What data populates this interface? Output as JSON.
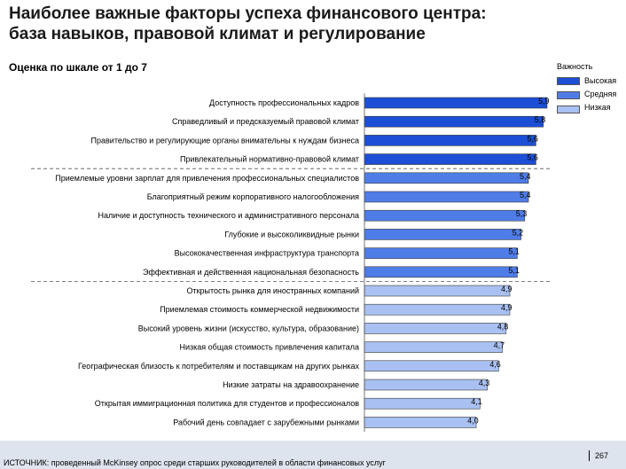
{
  "title_line1": "Наиболее важные факторы успеха финансового центра:",
  "title_line2": "база навыков, правовой климат и регулирование",
  "subtitle": "Оценка по шкале от 1 до 7",
  "legend": {
    "title": "Важность",
    "items": [
      {
        "label": "Высокая",
        "color": "#1c4fd6"
      },
      {
        "label": "Средняя",
        "color": "#4f7de8"
      },
      {
        "label": "Низкая",
        "color": "#a9c1f2"
      }
    ]
  },
  "source": "ИСТОЧНИК: проведенный McKinsey опрос среди старших руководителей в области финансовых услуг",
  "page_number": "267",
  "chart_data": {
    "type": "bar",
    "orientation": "horizontal",
    "categories": [
      "Доступность профессиональных кадров",
      "Справедливый и предсказуемый правовой климат",
      "Правительство и регулирующие органы внимательны к нуждам бизнеса",
      "Привлекательный нормативно-правовой климат",
      "Приемлемые уровни зарплат для привлечения профессиональных специалистов",
      "Благоприятный режим корпоративного налогообложения",
      "Наличие и доступность технического и административного персонала",
      "Глубокие и высоколиквидные рынки",
      "Высококачественная инфраструктура транспорта",
      "Эффективная и действенная национальная безопасность",
      "Открытость рынка для иностранных компаний",
      "Приемлемая стоимость коммерческой недвижимости",
      "Высокий уровень жизни (искусство, культура, образование)",
      "Низкая общая стоимость привлечения капитала",
      "Географическая близость к потребителям и поставщикам на других рынках",
      "Низкие затраты на здравоохранение",
      "Открытая иммиграционная политика для студентов и профессионалов",
      "Рабочий день совпадает с зарубежными рынками"
    ],
    "values": [
      5.9,
      5.8,
      5.6,
      5.6,
      5.4,
      5.4,
      5.3,
      5.2,
      5.1,
      5.1,
      4.9,
      4.9,
      4.8,
      4.7,
      4.6,
      4.3,
      4.1,
      4.0
    ],
    "value_labels": [
      "5,9",
      "5,8",
      "5,6",
      "5,6",
      "5,4",
      "5,4",
      "5,3",
      "5,2",
      "5,1",
      "5,1",
      "4,9",
      "4,9",
      "4,8",
      "4,7",
      "4,6",
      "4,3",
      "4,1",
      "4,0"
    ],
    "importance": [
      "Высокая",
      "Высокая",
      "Высокая",
      "Высокая",
      "Средняя",
      "Средняя",
      "Средняя",
      "Средняя",
      "Средняя",
      "Средняя",
      "Низкая",
      "Низкая",
      "Низкая",
      "Низкая",
      "Низкая",
      "Низкая",
      "Низкая",
      "Низкая"
    ],
    "group_separators_after": [
      3,
      9
    ],
    "xlim": [
      1,
      7
    ]
  }
}
